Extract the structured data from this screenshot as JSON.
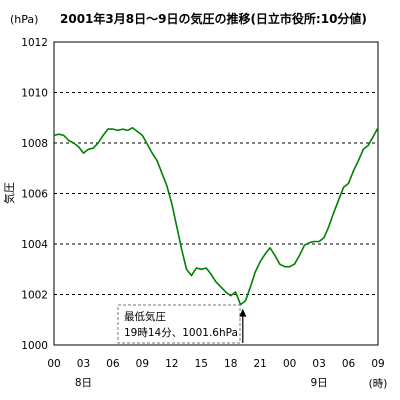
{
  "chart_data": {
    "type": "line",
    "title": "2001年3月8日～9日の気圧の推移(日立市役所:10分値)",
    "unit_label": "(hPa)",
    "ylabel": "気圧",
    "xunit_label": "(時)",
    "ylim": [
      1000,
      1012
    ],
    "yticks": [
      "1000",
      "1002",
      "1004",
      "1006",
      "1008",
      "1010",
      "1012"
    ],
    "xticks": [
      "00",
      "03",
      "06",
      "09",
      "12",
      "15",
      "18",
      "21",
      "00",
      "03",
      "06",
      "09"
    ],
    "day_labels": [
      {
        "text": "8日",
        "hour": 3
      },
      {
        "text": "9日",
        "hour": 27
      }
    ],
    "grid": "horizontal dashed",
    "series": [
      {
        "color": "#008000",
        "hours": [
          0,
          0.5,
          1,
          1.5,
          2,
          2.5,
          3,
          3.5,
          4,
          4.5,
          5,
          5.5,
          6,
          6.5,
          7,
          7.5,
          8,
          8.5,
          9,
          9.5,
          10,
          10.5,
          11,
          11.5,
          12,
          12.5,
          13,
          13.5,
          14,
          14.5,
          15,
          15.5,
          16,
          16.5,
          17,
          17.5,
          18,
          18.5,
          19,
          19.5,
          20,
          20.5,
          21,
          21.5,
          22,
          22.5,
          23,
          23.5,
          24,
          24.5,
          25,
          25.5,
          26,
          26.5,
          27,
          27.5,
          28,
          28.5,
          29,
          29.5,
          30,
          30.5,
          31,
          31.5,
          32,
          32.5,
          33
        ],
        "values": [
          1008.3,
          1008.35,
          1008.3,
          1008.1,
          1008.0,
          1007.85,
          1007.6,
          1007.75,
          1007.8,
          1008.0,
          1008.3,
          1008.55,
          1008.55,
          1008.5,
          1008.55,
          1008.5,
          1008.6,
          1008.45,
          1008.3,
          1007.95,
          1007.6,
          1007.3,
          1006.8,
          1006.3,
          1005.6,
          1004.7,
          1003.8,
          1003.0,
          1002.75,
          1003.05,
          1003.0,
          1003.05,
          1002.8,
          1002.5,
          1002.3,
          1002.1,
          1001.95,
          1002.1,
          1001.6,
          1001.75,
          1002.3,
          1002.9,
          1003.3,
          1003.6,
          1003.85,
          1003.55,
          1003.2,
          1003.1,
          1003.1,
          1003.2,
          1003.55,
          1003.95,
          1004.05,
          1004.1,
          1004.1,
          1004.25,
          1004.7,
          1005.25,
          1005.75,
          1006.25,
          1006.4,
          1006.9,
          1007.3,
          1007.75,
          1007.9,
          1008.25,
          1008.6
        ]
      }
    ],
    "annotation": {
      "line1": "最低気圧",
      "line2": "19時14分、1001.6hPa",
      "hour": 19.23,
      "value": 1001.6
    }
  }
}
